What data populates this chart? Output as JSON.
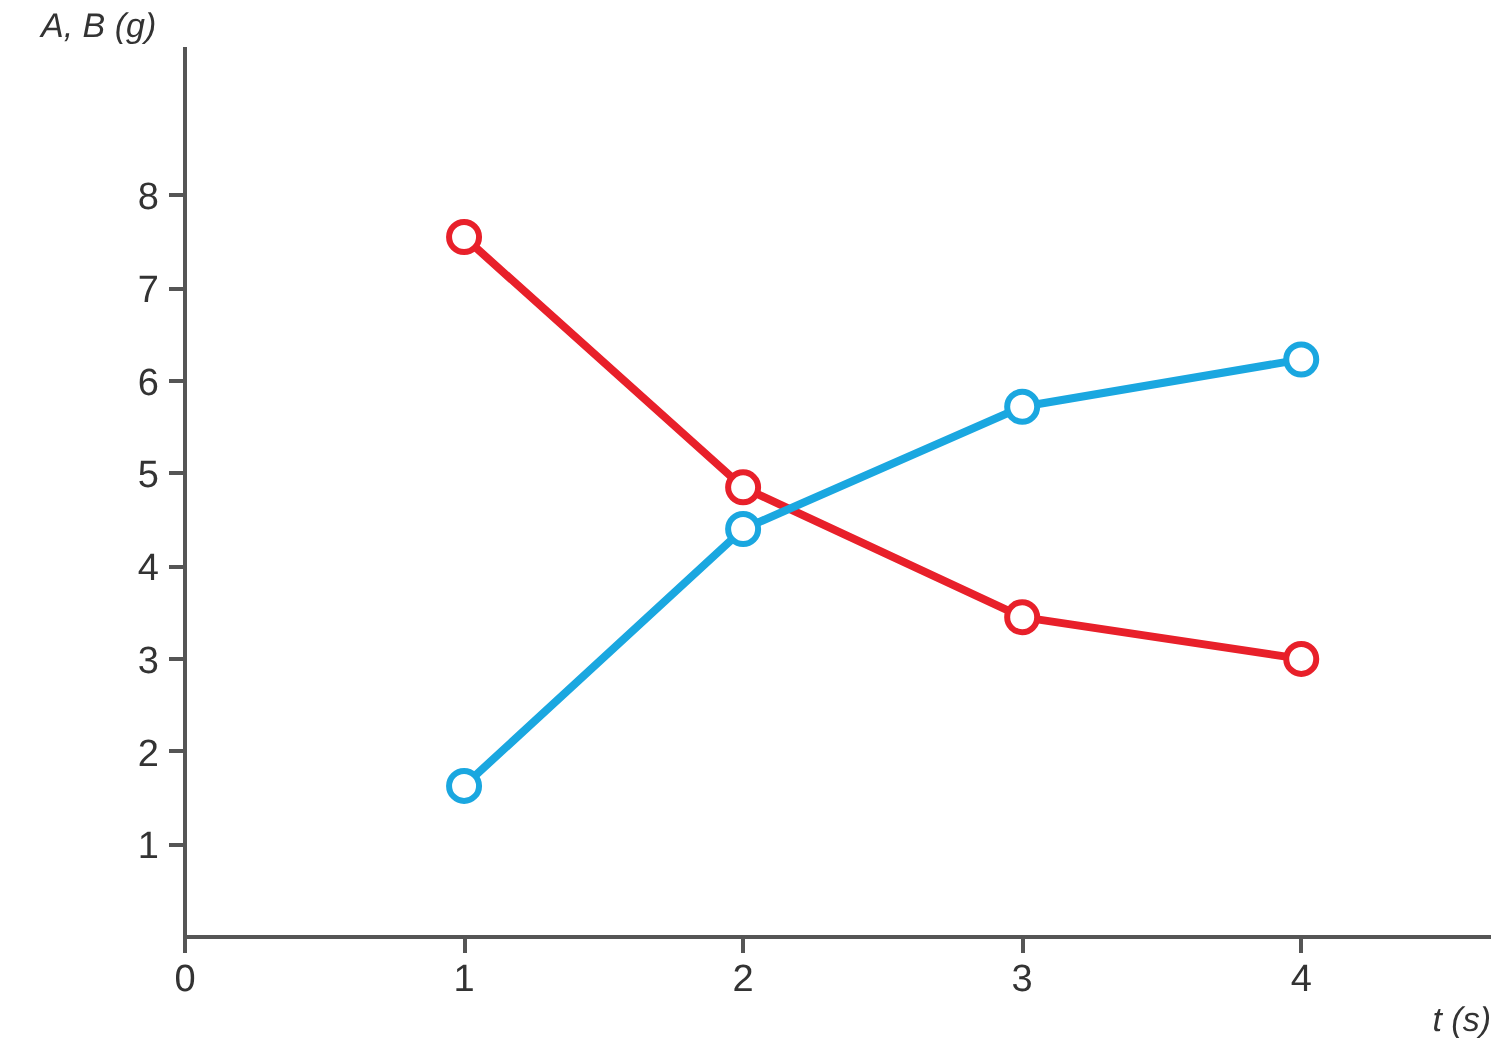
{
  "chart_data": {
    "type": "line",
    "xlabel": "t (s)",
    "ylabel": "A, B (g)",
    "x": [
      1,
      2,
      3,
      4
    ],
    "series": [
      {
        "color": "#e8202a",
        "values": [
          7.55,
          4.85,
          3.45,
          3.0
        ]
      },
      {
        "color": "#1aa7e0",
        "values": [
          1.63,
          4.4,
          5.72,
          6.23
        ]
      }
    ],
    "xlim": [
      0,
      4.68
    ],
    "ylim": [
      0,
      9.6
    ],
    "xticks": [
      {
        "value": 0,
        "label": "0"
      },
      1,
      2,
      3,
      4
    ],
    "yticks": [
      1,
      2,
      3,
      4,
      5,
      6,
      7,
      8
    ],
    "grid": false,
    "marker": "circle",
    "line_style": "solid"
  }
}
